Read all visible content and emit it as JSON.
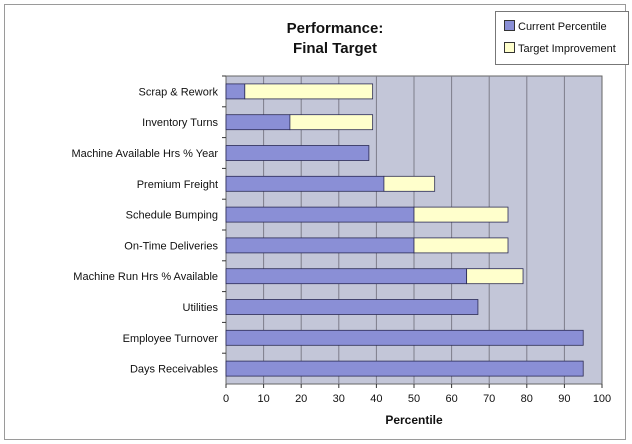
{
  "chart_data": {
    "type": "bar",
    "orientation": "horizontal",
    "stacked": true,
    "title": "Performance:\nFinal Target",
    "title_lines": [
      "Performance:",
      "Final Target"
    ],
    "xlabel": "Percentile",
    "ylabel": "",
    "xlim": [
      0,
      100
    ],
    "xticks": [
      0,
      10,
      20,
      30,
      40,
      50,
      60,
      70,
      80,
      90,
      100
    ],
    "grid": true,
    "legend_position": "top-right",
    "categories": [
      "Scrap & Rework",
      "Inventory Turns",
      "Machine Available Hrs % Year",
      "Premium Freight",
      "Schedule Bumping",
      "On-Time Deliveries",
      "Machine Run Hrs % Available",
      "Utilities",
      "Employee Turnover",
      "Days Receivables"
    ],
    "series": [
      {
        "name": "Current Percentile",
        "color": "#8a8fd6",
        "values": [
          5,
          17,
          38,
          42,
          50,
          50,
          64,
          67,
          95,
          95
        ]
      },
      {
        "name": "Target Improvement",
        "color": "#ffffcc",
        "values": [
          34,
          22,
          0,
          13.5,
          25,
          25,
          15,
          0,
          0,
          0
        ]
      }
    ]
  },
  "colors": {
    "plot_background": "#c3c6d8",
    "gridline": "#7d7d8a",
    "bar_border": "#2b2b55"
  }
}
